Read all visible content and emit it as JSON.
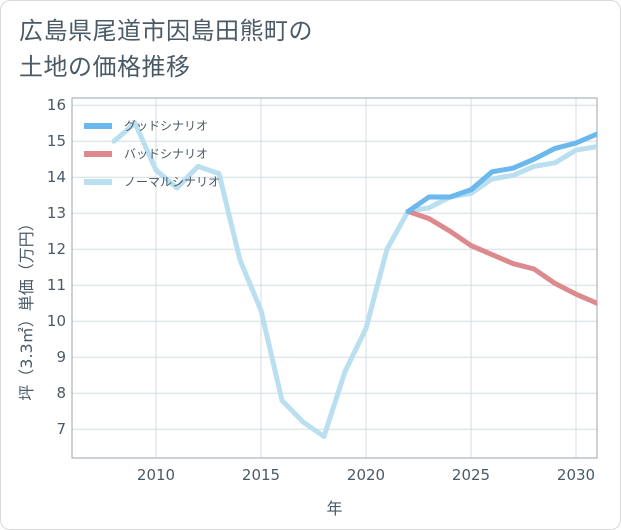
{
  "title_lines": [
    "広島県尾道市因島田熊町の",
    "土地の価格推移"
  ],
  "chart_data": {
    "type": "line",
    "title": "広島県尾道市因島田熊町の土地の価格推移",
    "xlabel": "年",
    "ylabel": "坪（3.3㎡）単価（万円）",
    "xlim": [
      2006,
      2031
    ],
    "ylim": [
      6.2,
      16.2
    ],
    "x_ticks": [
      2010,
      2015,
      2020,
      2025,
      2030
    ],
    "y_ticks": [
      7,
      8,
      9,
      10,
      11,
      12,
      13,
      14,
      15,
      16
    ],
    "grid": true,
    "legend_position": "top-left",
    "series": [
      {
        "name": "グッドシナリオ",
        "color": "#6bb8ec",
        "x": [
          2022,
          2023,
          2024,
          2025,
          2026,
          2027,
          2028,
          2029,
          2030,
          2031
        ],
        "y": [
          13.05,
          13.45,
          13.45,
          13.65,
          14.15,
          14.25,
          14.5,
          14.8,
          14.95,
          15.2
        ]
      },
      {
        "name": "バッドシナリオ",
        "color": "#dd8a8f",
        "x": [
          2022,
          2023,
          2024,
          2025,
          2026,
          2027,
          2028,
          2029,
          2030,
          2031
        ],
        "y": [
          13.05,
          12.85,
          12.5,
          12.1,
          11.85,
          11.6,
          11.45,
          11.05,
          10.75,
          10.5
        ]
      },
      {
        "name": "ノーマルシナリオ",
        "color": "#b9dff0",
        "x": [
          2008,
          2009,
          2010,
          2011,
          2012,
          2013,
          2014,
          2015,
          2016,
          2017,
          2018,
          2019,
          2020,
          2021,
          2022,
          2023,
          2024,
          2025,
          2026,
          2027,
          2028,
          2029,
          2030,
          2031
        ],
        "y": [
          15.0,
          15.5,
          14.2,
          13.7,
          14.3,
          14.1,
          11.7,
          10.3,
          7.8,
          7.2,
          6.8,
          8.6,
          9.8,
          12.0,
          13.05,
          13.15,
          13.45,
          13.55,
          13.95,
          14.05,
          14.3,
          14.4,
          14.75,
          14.85
        ]
      }
    ]
  }
}
